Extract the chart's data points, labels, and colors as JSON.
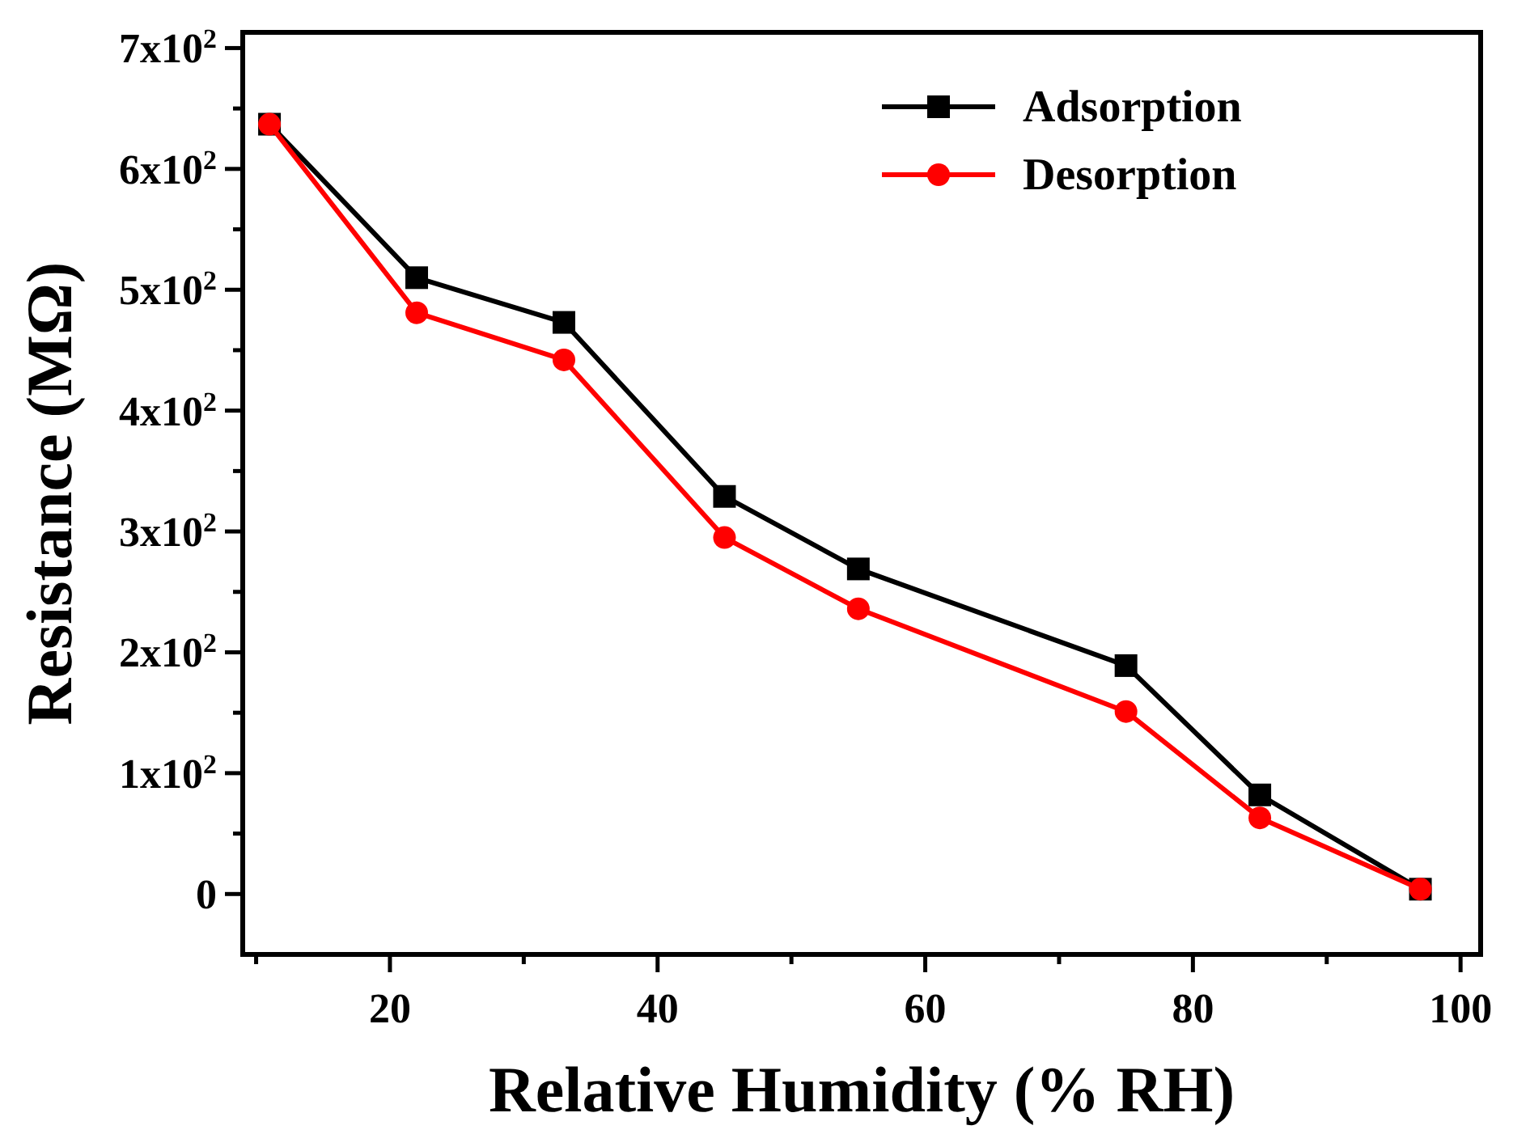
{
  "chart_data": {
    "type": "line",
    "xlabel": "Relative Humidity (% RH)",
    "ylabel": "Resistance (MΩ)",
    "x": [
      11,
      22,
      33,
      45,
      55,
      75,
      85,
      97
    ],
    "series": [
      {
        "name": "Adsorption",
        "color": "#000000",
        "marker": "square",
        "values": [
          637,
          510,
          473,
          329,
          269,
          189,
          82,
          4
        ]
      },
      {
        "name": "Desorption",
        "color": "#ff0000",
        "marker": "circle",
        "values": [
          637,
          481,
          442,
          295,
          236,
          151,
          63,
          4
        ]
      }
    ],
    "xlim": [
      9,
      101.5
    ],
    "xticks": [
      {
        "value": 10,
        "label": null
      },
      20,
      {
        "value": 30,
        "label": null
      },
      40,
      {
        "value": 50,
        "label": null
      },
      60,
      {
        "value": 70,
        "label": null
      },
      80,
      {
        "value": 90,
        "label": null
      },
      100
    ],
    "ylim": [
      -50,
      713
    ],
    "yticks": [
      {
        "value": 0,
        "label": "0"
      },
      {
        "value": 50,
        "label": null
      },
      {
        "value": 100,
        "label": "1x10$^{2}$"
      },
      {
        "value": 150,
        "label": null
      },
      {
        "value": 200,
        "label": "2x10$^{2}$"
      },
      {
        "value": 250,
        "label": null
      },
      {
        "value": 300,
        "label": "3x10$^{2}$"
      },
      {
        "value": 350,
        "label": null
      },
      {
        "value": 400,
        "label": "4x10$^{2}$"
      },
      {
        "value": 450,
        "label": null
      },
      {
        "value": 500,
        "label": "5x10$^{2}$"
      },
      {
        "value": 550,
        "label": null
      },
      {
        "value": 600,
        "label": "6x10$^{2}$"
      },
      {
        "value": 650,
        "label": null
      },
      {
        "value": 700,
        "label": "7x10$^{2}$"
      }
    ],
    "legend": "top right",
    "grid": false,
    "line_style": "solid"
  }
}
